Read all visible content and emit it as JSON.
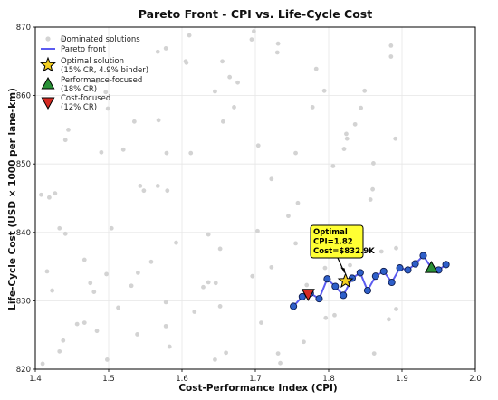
{
  "chart_data": {
    "type": "scatter",
    "title": "Pareto Front - CPI vs. Life-Cycle Cost",
    "xlabel": "Cost-Performance Index (CPI)",
    "ylabel": "Life-Cycle Cost (USD × 1000 per lane-km)",
    "xlim": [
      1.4,
      2.0
    ],
    "ylim": [
      820,
      870
    ],
    "xticks": [
      1.4,
      1.5,
      1.6,
      1.7,
      1.8,
      1.9,
      2.0
    ],
    "xtick_labels": [
      "1.4",
      "1.5",
      "1.6",
      "1.7",
      "1.8",
      "1.9",
      "2.0"
    ],
    "yticks": [
      820,
      830,
      840,
      850,
      860,
      870
    ],
    "ytick_labels": [
      "820",
      "830",
      "840",
      "850",
      "860",
      "870"
    ],
    "grid": true,
    "legend_position": "top-left",
    "legend": [
      {
        "label": "Dominated solutions",
        "marker": "dot"
      },
      {
        "label": "Pareto front",
        "marker": "line"
      },
      {
        "label": "Optimal solution\n(15% CR, 4.9% binder)",
        "marker": "star"
      },
      {
        "label": "Performance-focused\n(18% CR)",
        "marker": "triangle-up"
      },
      {
        "label": "Cost-focused\n(12% CR)",
        "marker": "triangle-down"
      }
    ],
    "series": [
      {
        "name": "Dominated solutions",
        "color": "#d3d3d3",
        "points": [
          [
            1.437,
            868.2
          ],
          [
            1.61,
            868.8
          ],
          [
            1.695,
            868.2
          ],
          [
            1.698,
            869.4
          ],
          [
            1.731,
            867.6
          ],
          [
            1.885,
            867.3
          ],
          [
            1.885,
            865.7
          ],
          [
            1.567,
            866.4
          ],
          [
            1.578,
            866.9
          ],
          [
            1.605,
            865.0
          ],
          [
            1.606,
            864.8
          ],
          [
            1.655,
            865.0
          ],
          [
            1.665,
            862.7
          ],
          [
            1.676,
            861.9
          ],
          [
            1.73,
            866.3
          ],
          [
            1.783,
            863.9
          ],
          [
            1.849,
            860.7
          ],
          [
            1.794,
            860.7
          ],
          [
            1.484,
            862.1
          ],
          [
            1.496,
            860.5
          ],
          [
            1.499,
            858.1
          ],
          [
            1.645,
            860.6
          ],
          [
            1.671,
            858.3
          ],
          [
            1.568,
            856.4
          ],
          [
            1.535,
            856.2
          ],
          [
            1.656,
            856.2
          ],
          [
            1.778,
            858.3
          ],
          [
            1.844,
            858.2
          ],
          [
            1.836,
            855.8
          ],
          [
            1.441,
            853.5
          ],
          [
            1.445,
            855.0
          ],
          [
            1.49,
            851.7
          ],
          [
            1.52,
            852.1
          ],
          [
            1.579,
            851.6
          ],
          [
            1.612,
            851.6
          ],
          [
            1.704,
            852.7
          ],
          [
            1.755,
            851.6
          ],
          [
            1.824,
            854.4
          ],
          [
            1.825,
            853.7
          ],
          [
            1.821,
            852.2
          ],
          [
            1.891,
            853.7
          ],
          [
            1.861,
            850.1
          ],
          [
            1.408,
            845.5
          ],
          [
            1.419,
            845.1
          ],
          [
            1.427,
            845.7
          ],
          [
            1.543,
            846.8
          ],
          [
            1.548,
            846.1
          ],
          [
            1.567,
            846.8
          ],
          [
            1.58,
            846.1
          ],
          [
            1.722,
            847.8
          ],
          [
            1.806,
            849.7
          ],
          [
            1.86,
            846.3
          ],
          [
            1.857,
            844.8
          ],
          [
            1.758,
            844.3
          ],
          [
            1.433,
            840.6
          ],
          [
            1.441,
            839.8
          ],
          [
            1.467,
            836.0
          ],
          [
            1.504,
            840.6
          ],
          [
            1.592,
            838.5
          ],
          [
            1.636,
            839.7
          ],
          [
            1.652,
            837.6
          ],
          [
            1.703,
            840.2
          ],
          [
            1.745,
            842.4
          ],
          [
            1.755,
            838.4
          ],
          [
            1.826,
            837.8
          ],
          [
            1.416,
            834.3
          ],
          [
            1.423,
            831.5
          ],
          [
            1.475,
            832.6
          ],
          [
            1.48,
            831.3
          ],
          [
            1.497,
            833.9
          ],
          [
            1.54,
            834.1
          ],
          [
            1.558,
            835.7
          ],
          [
            1.629,
            832.0
          ],
          [
            1.636,
            832.7
          ],
          [
            1.646,
            832.6
          ],
          [
            1.696,
            833.6
          ],
          [
            1.722,
            834.9
          ],
          [
            1.77,
            832.3
          ],
          [
            1.795,
            834.8
          ],
          [
            1.829,
            835.2
          ],
          [
            1.837,
            837.6
          ],
          [
            1.872,
            837.2
          ],
          [
            1.892,
            837.7
          ],
          [
            1.467,
            826.8
          ],
          [
            1.484,
            825.6
          ],
          [
            1.513,
            829.0
          ],
          [
            1.531,
            832.2
          ],
          [
            1.578,
            829.8
          ],
          [
            1.578,
            826.3
          ],
          [
            1.617,
            828.4
          ],
          [
            1.652,
            829.2
          ],
          [
            1.708,
            826.8
          ],
          [
            1.731,
            822.3
          ],
          [
            1.766,
            824.0
          ],
          [
            1.796,
            827.5
          ],
          [
            1.808,
            827.9
          ],
          [
            1.882,
            827.3
          ],
          [
            1.892,
            828.8
          ],
          [
            1.433,
            822.6
          ],
          [
            1.438,
            824.2
          ],
          [
            1.457,
            826.6
          ],
          [
            1.539,
            825.1
          ],
          [
            1.583,
            823.3
          ],
          [
            1.66,
            822.4
          ],
          [
            1.734,
            820.9
          ],
          [
            1.41,
            820.8
          ],
          [
            1.498,
            821.4
          ],
          [
            1.645,
            821.4
          ],
          [
            1.862,
            822.3
          ]
        ]
      },
      {
        "name": "Pareto front",
        "color": "#2e5fc9",
        "points": [
          [
            1.752,
            829.2
          ],
          [
            1.764,
            830.6
          ],
          [
            1.775,
            831.1
          ],
          [
            1.787,
            830.3
          ],
          [
            1.798,
            833.2
          ],
          [
            1.809,
            832.1
          ],
          [
            1.82,
            830.8
          ],
          [
            1.832,
            833.3
          ],
          [
            1.843,
            834.1
          ],
          [
            1.853,
            831.5
          ],
          [
            1.864,
            833.6
          ],
          [
            1.875,
            834.3
          ],
          [
            1.886,
            832.7
          ],
          [
            1.897,
            834.8
          ],
          [
            1.908,
            834.5
          ],
          [
            1.918,
            835.4
          ],
          [
            1.929,
            836.6
          ],
          [
            1.94,
            834.8
          ],
          [
            1.95,
            834.5
          ],
          [
            1.96,
            835.3
          ]
        ]
      }
    ],
    "highlights": [
      {
        "name": "Optimal solution",
        "x": 1.823,
        "y": 832.9,
        "marker": "star",
        "color": "#f5d020"
      },
      {
        "name": "Performance-focused",
        "x": 1.94,
        "y": 834.8,
        "marker": "triangle-up",
        "color": "#2a9137"
      },
      {
        "name": "Cost-focused",
        "x": 1.772,
        "y": 831.0,
        "marker": "triangle-down",
        "color": "#d62a22"
      }
    ],
    "annotation": {
      "lines": [
        "Optimal",
        "CPI=1.82",
        "Cost=$832.9K"
      ],
      "box_color": "#ffff33"
    }
  }
}
